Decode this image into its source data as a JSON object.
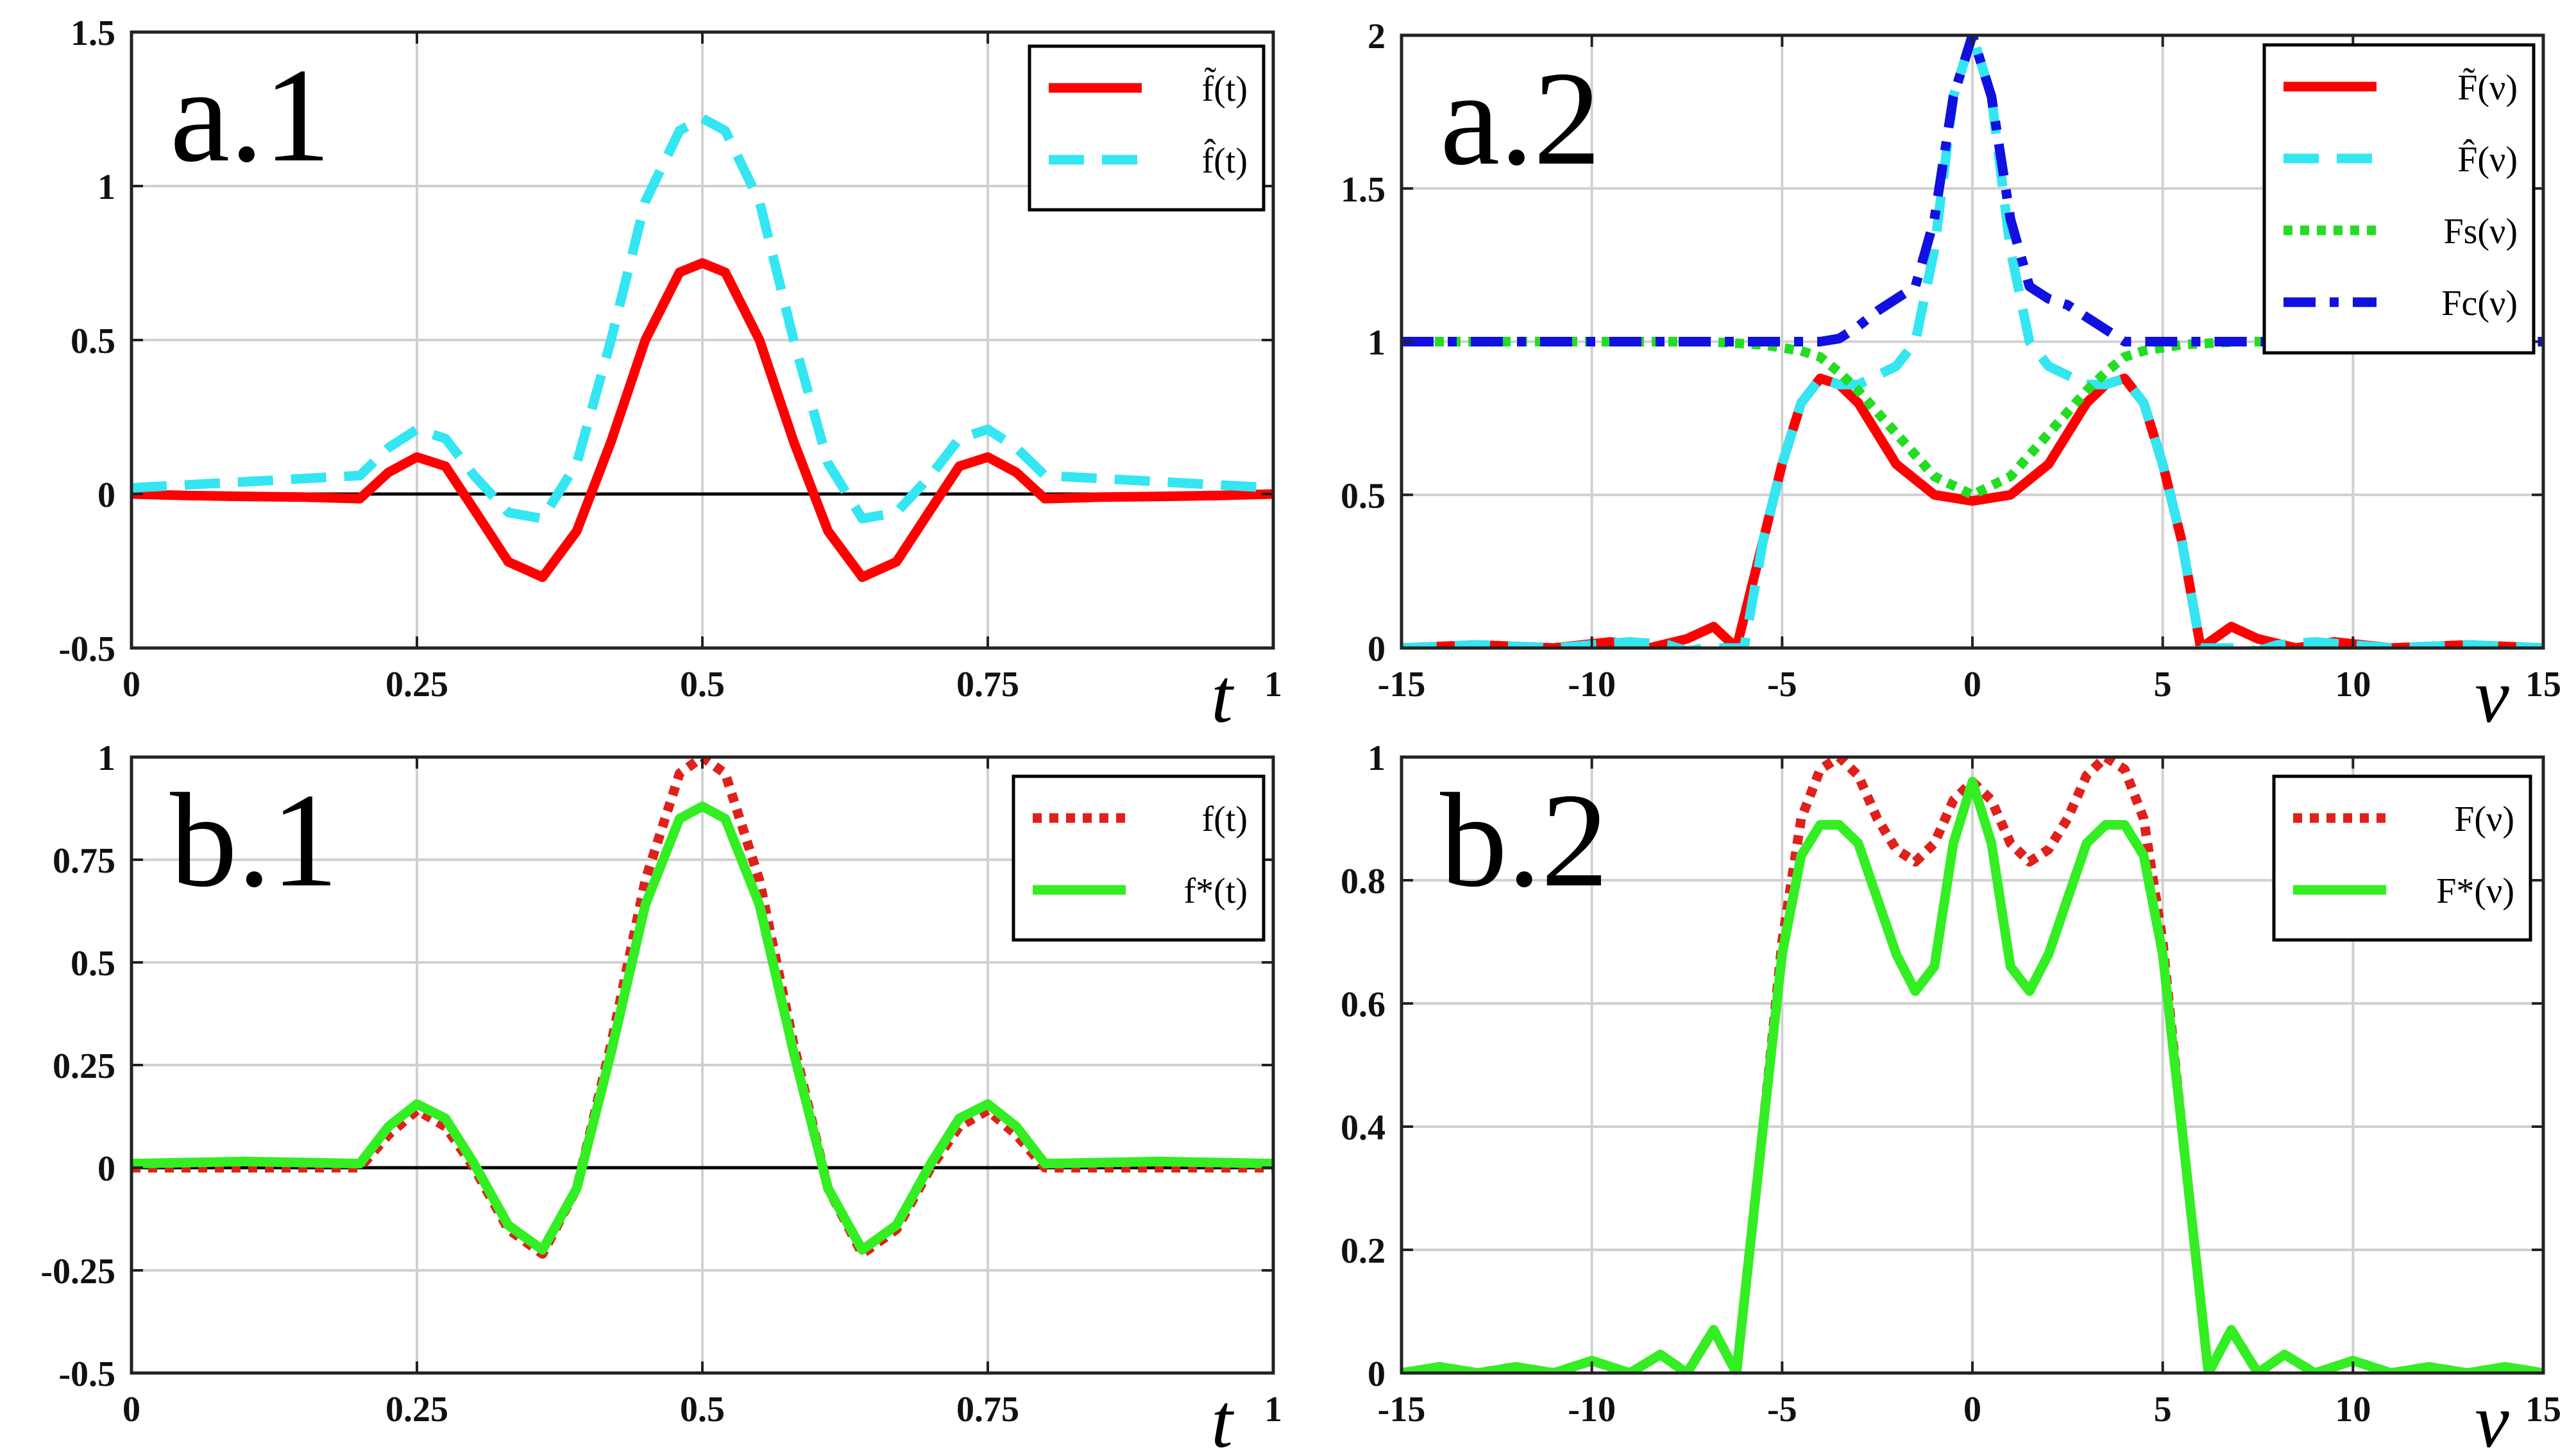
{
  "figure": {
    "background": "#ffffff",
    "grid_color": "#d0d0d0"
  },
  "chart_data": [
    {
      "id": "a1",
      "type": "line",
      "panel_label": "a.1",
      "xlabel": "t",
      "xlim": [
        0,
        1
      ],
      "ylim": [
        -0.5,
        1.5
      ],
      "xticks": [
        0,
        0.25,
        0.5,
        0.75,
        1
      ],
      "xtick_labels": [
        "0",
        "0.25",
        "0.5",
        "0.75",
        ""
      ],
      "xend_label": "1",
      "yticks": [
        -0.5,
        0,
        0.5,
        1,
        1.5
      ],
      "ytick_labels": [
        "-0.5",
        "0",
        "0.5",
        "1",
        "1.5"
      ],
      "zero_line": true,
      "legend": {
        "position": "top-right"
      },
      "series": [
        {
          "name": "f̃(t)",
          "color": "#ff0000",
          "style": "solid",
          "x": [
            0,
            0.05,
            0.1,
            0.15,
            0.2,
            0.225,
            0.25,
            0.275,
            0.3,
            0.33,
            0.36,
            0.39,
            0.42,
            0.45,
            0.48,
            0.5,
            0.52,
            0.55,
            0.58,
            0.61,
            0.64,
            0.67,
            0.7,
            0.725,
            0.75,
            0.775,
            0.8,
            0.85,
            0.9,
            0.95,
            1
          ],
          "y": [
            0.0,
            -0.005,
            -0.008,
            -0.01,
            -0.015,
            0.07,
            0.12,
            0.09,
            -0.05,
            -0.22,
            -0.27,
            -0.12,
            0.17,
            0.5,
            0.72,
            0.75,
            0.72,
            0.5,
            0.17,
            -0.12,
            -0.27,
            -0.22,
            -0.05,
            0.09,
            0.12,
            0.07,
            -0.015,
            -0.01,
            -0.008,
            -0.005,
            0.0
          ]
        },
        {
          "name": "f̂(t)",
          "color": "#33e6f2",
          "style": "dashed",
          "x": [
            0,
            0.05,
            0.1,
            0.15,
            0.2,
            0.225,
            0.25,
            0.275,
            0.3,
            0.33,
            0.36,
            0.39,
            0.42,
            0.45,
            0.48,
            0.5,
            0.52,
            0.55,
            0.58,
            0.61,
            0.64,
            0.67,
            0.7,
            0.725,
            0.75,
            0.775,
            0.8,
            0.85,
            0.9,
            0.95,
            1
          ],
          "y": [
            0.02,
            0.03,
            0.04,
            0.05,
            0.06,
            0.15,
            0.21,
            0.18,
            0.06,
            -0.06,
            -0.08,
            0.1,
            0.5,
            0.95,
            1.18,
            1.22,
            1.18,
            0.95,
            0.5,
            0.1,
            -0.08,
            -0.06,
            0.06,
            0.18,
            0.21,
            0.15,
            0.06,
            0.05,
            0.04,
            0.03,
            0.02
          ]
        }
      ]
    },
    {
      "id": "a2",
      "type": "line",
      "panel_label": "a.2",
      "xlabel": "ν",
      "xlim": [
        -15,
        15
      ],
      "ylim": [
        0,
        2
      ],
      "xticks": [
        -15,
        -10,
        -5,
        0,
        5,
        10,
        15
      ],
      "xtick_labels": [
        "-15",
        "-10",
        "-5",
        "0",
        "5",
        "10",
        ""
      ],
      "xend_label": "15",
      "yticks": [
        0,
        0.5,
        1,
        1.5,
        2
      ],
      "ytick_labels": [
        "0",
        "0.5",
        "1",
        "1.5",
        "2"
      ],
      "zero_line": false,
      "legend": {
        "position": "top-right"
      },
      "series": [
        {
          "name": "F̃(ν)",
          "color": "#ff0000",
          "style": "solid",
          "x": [
            -15,
            -13,
            -11,
            -9.5,
            -8.5,
            -7.5,
            -6.8,
            -6.2,
            -5.5,
            -5,
            -4.5,
            -4,
            -3.5,
            -3,
            -2,
            -1,
            0,
            1,
            2,
            3,
            3.5,
            4,
            4.5,
            5,
            5.5,
            6,
            6.8,
            7.5,
            8.5,
            9.5,
            11,
            13,
            15
          ],
          "y": [
            0.0,
            0.01,
            0.0,
            0.02,
            0.0,
            0.03,
            0.07,
            0.0,
            0.35,
            0.6,
            0.8,
            0.88,
            0.86,
            0.8,
            0.6,
            0.5,
            0.48,
            0.5,
            0.6,
            0.8,
            0.86,
            0.88,
            0.8,
            0.6,
            0.35,
            0.0,
            0.07,
            0.03,
            0.0,
            0.02,
            0.0,
            0.01,
            0.0
          ]
        },
        {
          "name": "F̂(ν)",
          "color": "#33e6f2",
          "style": "dashed",
          "x": [
            -15,
            -13,
            -11,
            -9,
            -8,
            -7.5,
            -7,
            -6,
            -5.5,
            -5,
            -4.5,
            -4,
            -3.5,
            -3,
            -2,
            -1.5,
            -1,
            -0.5,
            0,
            0.5,
            1,
            1.5,
            2,
            3,
            3.5,
            4,
            4.5,
            5,
            5.5,
            6,
            7,
            7.5,
            8,
            9,
            11,
            13,
            15
          ],
          "y": [
            0.0,
            0.01,
            0.0,
            0.02,
            0.01,
            -0.01,
            0.0,
            0.0,
            0.35,
            0.6,
            0.8,
            0.88,
            0.86,
            0.86,
            0.92,
            1.0,
            1.3,
            1.8,
            2.0,
            1.8,
            1.3,
            1.0,
            0.92,
            0.86,
            0.86,
            0.88,
            0.8,
            0.6,
            0.35,
            0.0,
            0.0,
            -0.01,
            0.01,
            0.02,
            0.0,
            0.01,
            0.0
          ]
        },
        {
          "name": "Fs(ν)",
          "color": "#22dd22",
          "style": "dotted",
          "x": [
            -15,
            -10,
            -7,
            -5.5,
            -4.5,
            -4,
            -3.5,
            -3,
            -2,
            -1,
            0,
            1,
            2,
            3,
            3.5,
            4,
            4.5,
            5.5,
            7,
            10,
            15
          ],
          "y": [
            1.0,
            1.0,
            1.0,
            0.99,
            0.97,
            0.95,
            0.9,
            0.84,
            0.7,
            0.56,
            0.5,
            0.56,
            0.7,
            0.84,
            0.9,
            0.95,
            0.97,
            0.99,
            1.0,
            1.0,
            1.0
          ]
        },
        {
          "name": "Fc(ν)",
          "color": "#1010e0",
          "style": "dashdot",
          "x": [
            -15,
            -10,
            -5,
            -4,
            -3.5,
            -3,
            -2.5,
            -2,
            -1.5,
            -1,
            -0.5,
            0,
            0.5,
            1,
            1.5,
            2,
            2.5,
            3,
            3.5,
            4,
            5,
            10,
            15
          ],
          "y": [
            1.0,
            1.0,
            1.0,
            1.0,
            1.01,
            1.05,
            1.1,
            1.14,
            1.18,
            1.4,
            1.8,
            2.0,
            1.8,
            1.4,
            1.18,
            1.14,
            1.12,
            1.08,
            1.04,
            1.0,
            1.0,
            1.0,
            1.0
          ]
        }
      ]
    },
    {
      "id": "b1",
      "type": "line",
      "panel_label": "b.1",
      "xlabel": "t",
      "xlim": [
        0,
        1
      ],
      "ylim": [
        -0.5,
        1
      ],
      "xticks": [
        0,
        0.25,
        0.5,
        0.75,
        1
      ],
      "xtick_labels": [
        "0",
        "0.25",
        "0.5",
        "0.75",
        ""
      ],
      "xend_label": "1",
      "yticks": [
        -0.5,
        -0.25,
        0,
        0.25,
        0.5,
        0.75,
        1
      ],
      "ytick_labels": [
        "-0.5",
        "-0.25",
        "0",
        "0.25",
        "0.5",
        "0.75",
        "1"
      ],
      "zero_line": true,
      "legend": {
        "position": "top-right"
      },
      "series": [
        {
          "name": "f(t)",
          "color": "#e0201a",
          "style": "dotted",
          "x": [
            0,
            0.1,
            0.2,
            0.225,
            0.25,
            0.275,
            0.3,
            0.33,
            0.36,
            0.39,
            0.42,
            0.45,
            0.48,
            0.5,
            0.52,
            0.55,
            0.58,
            0.61,
            0.64,
            0.67,
            0.7,
            0.725,
            0.75,
            0.775,
            0.8,
            0.9,
            1
          ],
          "y": [
            0.0,
            0.0,
            0.0,
            0.08,
            0.14,
            0.1,
            0.0,
            -0.15,
            -0.21,
            -0.05,
            0.3,
            0.7,
            0.96,
            1.0,
            0.96,
            0.7,
            0.3,
            -0.05,
            -0.21,
            -0.15,
            0.0,
            0.1,
            0.14,
            0.08,
            0.0,
            0.0,
            0.0
          ]
        },
        {
          "name": "f*(t)",
          "color": "#33ee22",
          "style": "solid",
          "x": [
            0,
            0.1,
            0.2,
            0.225,
            0.25,
            0.275,
            0.3,
            0.33,
            0.36,
            0.39,
            0.42,
            0.45,
            0.48,
            0.5,
            0.52,
            0.55,
            0.58,
            0.61,
            0.64,
            0.67,
            0.7,
            0.725,
            0.75,
            0.775,
            0.8,
            0.9,
            1
          ],
          "y": [
            0.01,
            0.015,
            0.01,
            0.1,
            0.155,
            0.12,
            0.01,
            -0.14,
            -0.2,
            -0.05,
            0.28,
            0.64,
            0.85,
            0.88,
            0.85,
            0.64,
            0.28,
            -0.05,
            -0.2,
            -0.14,
            0.01,
            0.12,
            0.155,
            0.1,
            0.01,
            0.015,
            0.01
          ]
        }
      ]
    },
    {
      "id": "b2",
      "type": "line",
      "panel_label": "b.2",
      "xlabel": "ν",
      "xlim": [
        -15,
        15
      ],
      "ylim": [
        0,
        1
      ],
      "xticks": [
        -15,
        -10,
        -5,
        0,
        5,
        10,
        15
      ],
      "xtick_labels": [
        "-15",
        "-10",
        "-5",
        "0",
        "5",
        "10",
        ""
      ],
      "xend_label": "15",
      "yticks": [
        0,
        0.2,
        0.4,
        0.6,
        0.8,
        1
      ],
      "ytick_labels": [
        "0",
        "0.2",
        "0.4",
        "0.6",
        "0.8",
        "1"
      ],
      "zero_line": false,
      "legend": {
        "position": "top-right"
      },
      "series": [
        {
          "name": "F(ν)",
          "color": "#e0201a",
          "style": "dotted",
          "x": [
            -15,
            -14,
            -13,
            -12,
            -11,
            -10,
            -9,
            -8.2,
            -7.5,
            -6.8,
            -6.2,
            -5.5,
            -5,
            -4.5,
            -4,
            -3.5,
            -3,
            -2.5,
            -2,
            -1.5,
            -1,
            -0.5,
            0,
            0.5,
            1,
            1.5,
            2,
            2.5,
            3,
            3.5,
            4,
            4.5,
            5,
            5.5,
            6.2,
            6.8,
            7.5,
            8.2,
            9,
            10,
            11,
            12,
            13,
            14,
            15
          ],
          "y": [
            0.0,
            0.01,
            0.0,
            0.01,
            0.0,
            0.02,
            0.0,
            0.03,
            0.0,
            0.07,
            0.0,
            0.4,
            0.7,
            0.9,
            0.98,
            1.0,
            0.97,
            0.9,
            0.85,
            0.83,
            0.86,
            0.93,
            0.96,
            0.93,
            0.86,
            0.83,
            0.85,
            0.9,
            0.97,
            1.0,
            0.98,
            0.9,
            0.7,
            0.4,
            0.0,
            0.07,
            0.0,
            0.03,
            0.0,
            0.02,
            0.0,
            0.01,
            0.0,
            0.01,
            0.0
          ]
        },
        {
          "name": "F*(ν)",
          "color": "#33ee22",
          "style": "solid",
          "x": [
            -15,
            -14,
            -13,
            -12,
            -11,
            -10,
            -9,
            -8.2,
            -7.5,
            -6.8,
            -6.2,
            -5.5,
            -5,
            -4.5,
            -4,
            -3.5,
            -3,
            -2.5,
            -2,
            -1.5,
            -1,
            -0.5,
            0,
            0.5,
            1,
            1.5,
            2,
            2.5,
            3,
            3.5,
            4,
            4.5,
            5,
            5.5,
            6.2,
            6.8,
            7.5,
            8.2,
            9,
            10,
            11,
            12,
            13,
            14,
            15
          ],
          "y": [
            0.0,
            0.01,
            0.0,
            0.01,
            0.0,
            0.02,
            0.0,
            0.03,
            0.0,
            0.07,
            0.0,
            0.4,
            0.68,
            0.84,
            0.89,
            0.89,
            0.86,
            0.77,
            0.68,
            0.62,
            0.66,
            0.86,
            0.96,
            0.86,
            0.66,
            0.62,
            0.68,
            0.77,
            0.86,
            0.89,
            0.89,
            0.84,
            0.68,
            0.4,
            0.0,
            0.07,
            0.0,
            0.03,
            0.0,
            0.02,
            0.0,
            0.01,
            0.0,
            0.01,
            0.0
          ]
        }
      ]
    }
  ]
}
